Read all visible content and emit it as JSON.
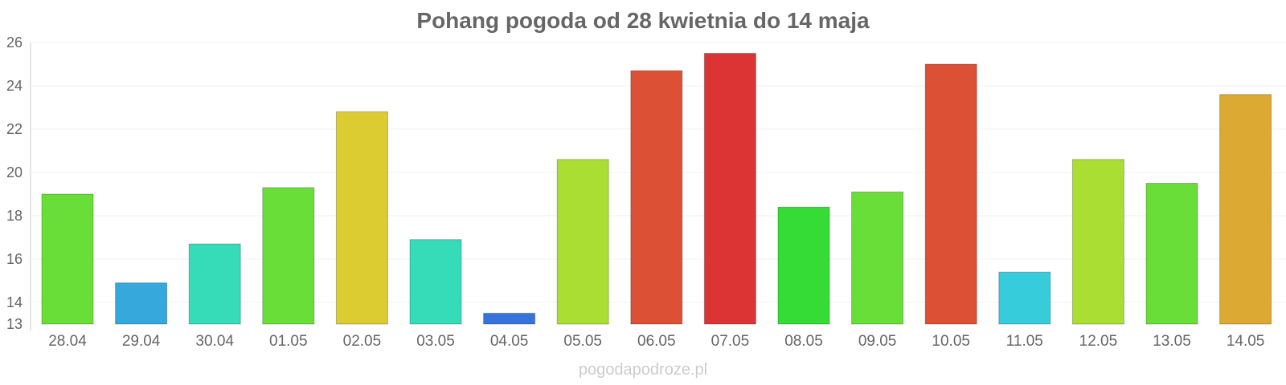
{
  "chart_data": {
    "type": "bar",
    "title": "Pohang pogoda od 28 kwietnia do 14 maja",
    "xlabel": "",
    "ylabel": "",
    "ylim": [
      13,
      26
    ],
    "y_ticks": [
      13,
      14,
      16,
      18,
      20,
      22,
      24,
      26
    ],
    "grid": true,
    "categories": [
      "28.04",
      "29.04",
      "30.04",
      "01.05",
      "02.05",
      "03.05",
      "04.05",
      "05.05",
      "06.05",
      "07.05",
      "08.05",
      "09.05",
      "10.05",
      "11.05",
      "12.05",
      "13.05",
      "14.05"
    ],
    "values": [
      19.0,
      14.9,
      16.7,
      19.3,
      22.8,
      16.9,
      13.5,
      20.6,
      24.7,
      25.5,
      18.4,
      19.1,
      25.0,
      15.4,
      20.6,
      19.5,
      23.6
    ],
    "colors": [
      "#6ade38",
      "#36a8dc",
      "#36dcb8",
      "#6ade38",
      "#dccc32",
      "#36dcb8",
      "#3674dc",
      "#aade32",
      "#dc5036",
      "#dc3434",
      "#36dc36",
      "#6ade38",
      "#dc5036",
      "#36ccdc",
      "#aade32",
      "#6ade38",
      "#dcaa32"
    ]
  },
  "watermark": "pogodapodroze.pl"
}
